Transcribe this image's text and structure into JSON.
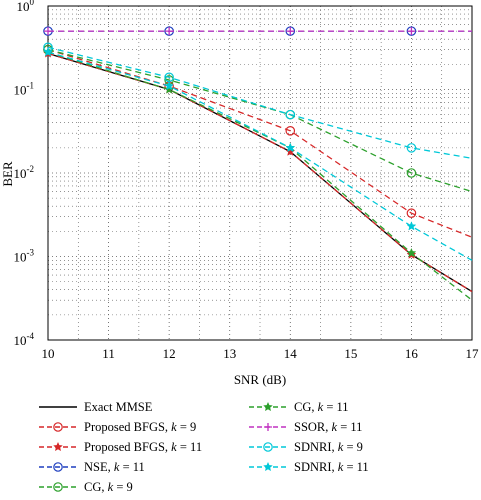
{
  "chart_data": {
    "type": "line",
    "title": "",
    "xlabel": "SNR (dB)",
    "ylabel": "BER",
    "xlim": [
      10,
      17
    ],
    "ylim": [
      0.0001,
      1
    ],
    "yscale": "log",
    "grid": true,
    "x_ticks": [
      10,
      11,
      12,
      13,
      14,
      15,
      16,
      17
    ],
    "x_tick_labels": [
      "10",
      "11",
      "12",
      "13",
      "14",
      "15",
      "16",
      "17"
    ],
    "y_tick_labels": [
      {
        "base": "10",
        "exp": "0"
      },
      {
        "base": "10",
        "exp": "-1"
      },
      {
        "base": "10",
        "exp": "-2"
      },
      {
        "base": "10",
        "exp": "-3"
      },
      {
        "base": "10",
        "exp": "-4"
      }
    ],
    "legend_position": "below",
    "x": [
      10,
      12,
      14,
      16,
      17
    ],
    "series": [
      {
        "name": "Exact MMSE",
        "k": "",
        "color": "#000000",
        "dash": "",
        "marker": "none",
        "values": [
          0.27,
          0.1,
          0.018,
          0.00105,
          0.00038
        ]
      },
      {
        "name": "Proposed BFGS, ",
        "k": "9",
        "color": "#d62728",
        "dash": "6,4",
        "marker": "circle",
        "values": [
          0.3,
          0.11,
          0.032,
          0.0033,
          0.0017
        ]
      },
      {
        "name": "Proposed BFGS, ",
        "k": "11",
        "color": "#d62728",
        "dash": "6,4",
        "marker": "star",
        "values": [
          0.27,
          0.1,
          0.018,
          0.00105,
          0.00038
        ]
      },
      {
        "name": "NSE, ",
        "k": "11",
        "color": "#1f3fbf",
        "dash": "6,4",
        "marker": "circle",
        "values": [
          0.5,
          0.5,
          0.5,
          0.5,
          0.5
        ]
      },
      {
        "name": "CG, ",
        "k": "9",
        "color": "#2ca02c",
        "dash": "6,4",
        "marker": "circle",
        "values": [
          0.3,
          0.13,
          0.05,
          0.01,
          0.006
        ]
      },
      {
        "name": "CG, ",
        "k": "11",
        "color": "#2ca02c",
        "dash": "6,4",
        "marker": "star",
        "values": [
          0.28,
          0.1,
          0.02,
          0.0011,
          0.0003
        ]
      },
      {
        "name": "SSOR, ",
        "k": "11",
        "color": "#c030c0",
        "dash": "6,4",
        "marker": "plus",
        "values": [
          0.5,
          0.5,
          0.5,
          0.5,
          0.5
        ]
      },
      {
        "name": "SDNRI, ",
        "k": "9",
        "color": "#00c8d8",
        "dash": "6,4",
        "marker": "circle",
        "values": [
          0.32,
          0.14,
          0.05,
          0.02,
          0.015
        ]
      },
      {
        "name": "SDNRI, ",
        "k": "11",
        "color": "#00c8d8",
        "dash": "6,4",
        "marker": "star",
        "values": [
          0.28,
          0.11,
          0.02,
          0.0023,
          0.0009
        ]
      }
    ]
  }
}
